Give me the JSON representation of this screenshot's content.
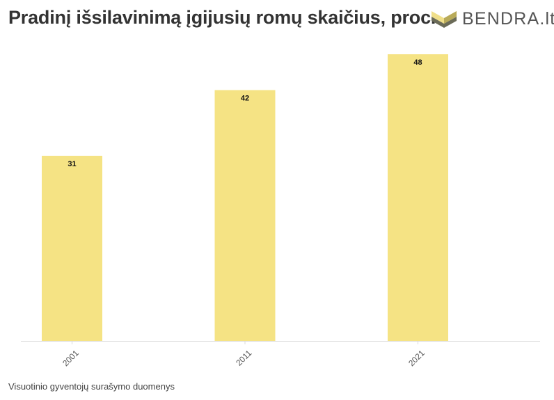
{
  "title": "Pradinį išsilavinimą įgijusių romų skaičius, proc.",
  "logo": {
    "text": "BENDRA.lt",
    "icon": "bendra-logo-icon"
  },
  "source": "Visuotinio gyventojų surašymo duomenys",
  "colors": {
    "bar": "#f5e384",
    "baseline": "#d9d9d9",
    "label": "#111111",
    "tick": "#555555"
  },
  "chart_data": {
    "type": "bar",
    "title": "Pradinį išsilavinimą įgijusių romų skaičius, proc.",
    "categories": [
      "2001",
      "2011",
      "2021"
    ],
    "values": [
      31,
      42,
      48
    ],
    "data_labels": [
      "31",
      "42",
      "48"
    ],
    "xlabel": "",
    "ylabel": "",
    "ylim": [
      0,
      48
    ],
    "grid": false,
    "legend": "none"
  }
}
